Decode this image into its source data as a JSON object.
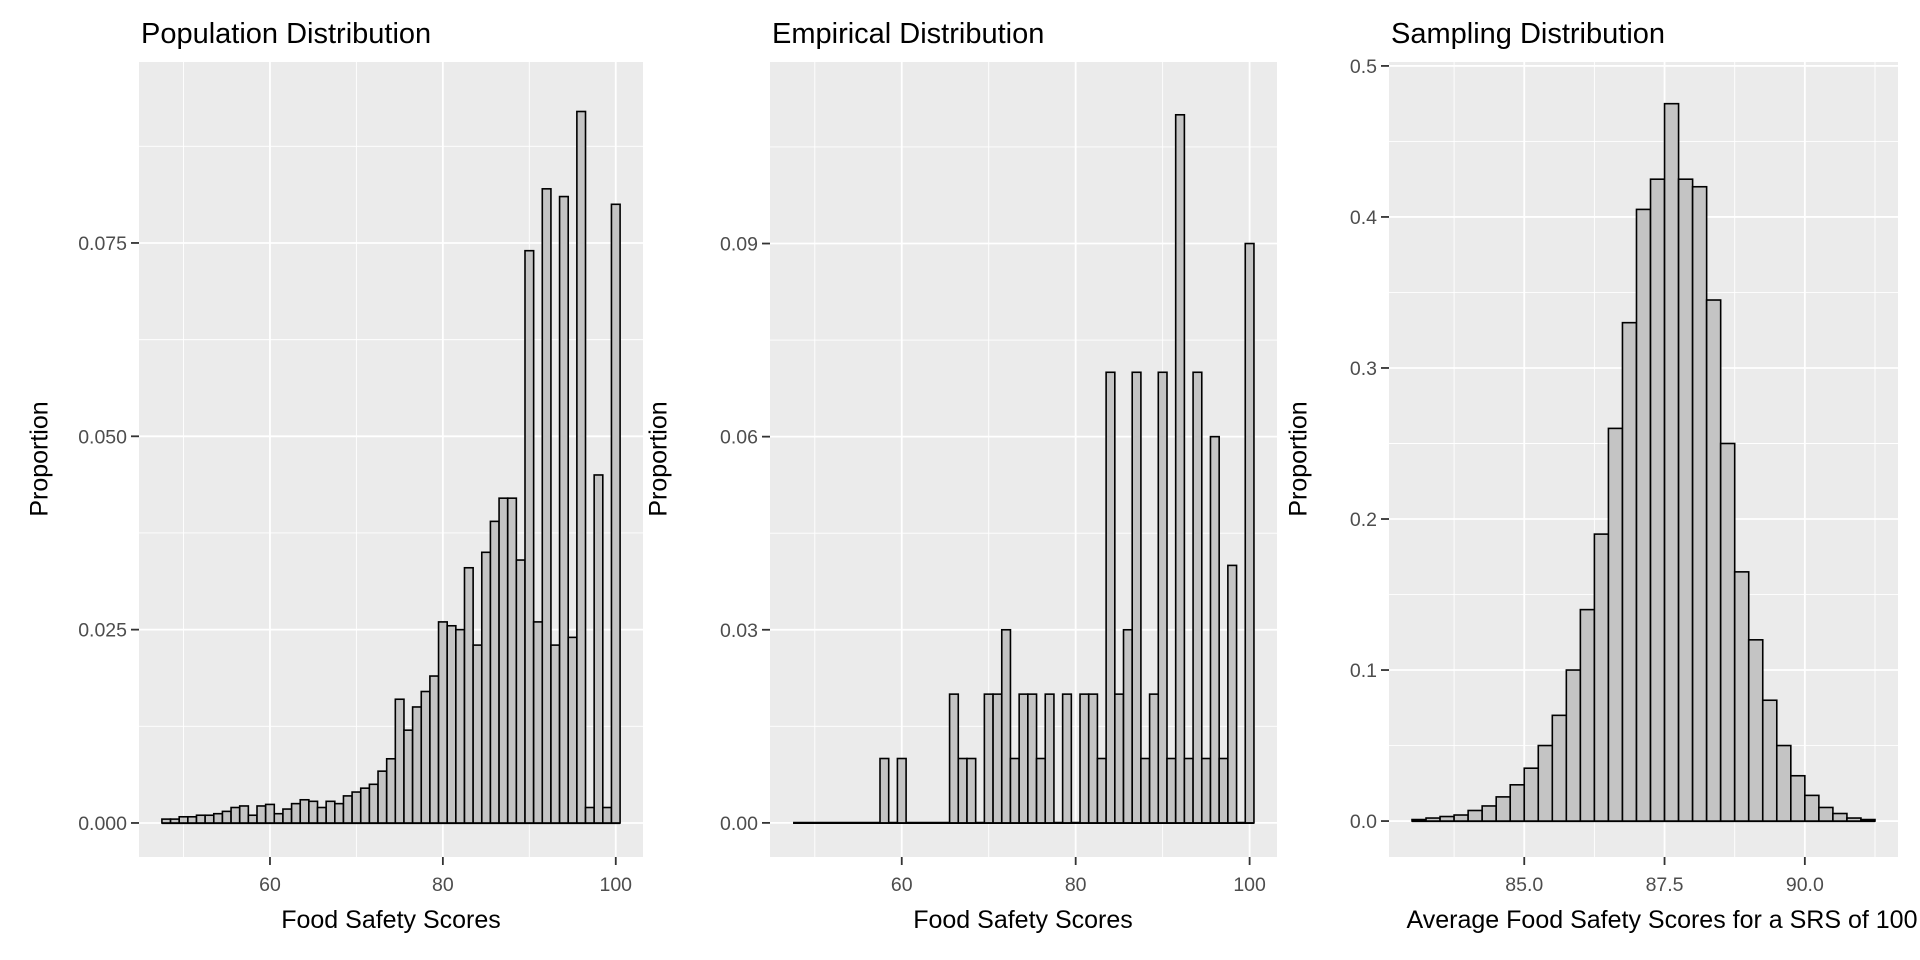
{
  "page": {
    "background": "#ffffff"
  },
  "style": {
    "panel_bg": "#ebebeb",
    "grid_major": "#ffffff",
    "grid_minor": "#ffffff",
    "bar_fill": "#c4c4c4",
    "bar_stroke": "#000000",
    "tick_color": "#333333",
    "tick_label_color": "#4d4d4d",
    "title_color": "#000000"
  },
  "chart_data": [
    {
      "type": "bar",
      "title": "Population Distribution",
      "xlabel": "Food Safety Scores",
      "ylabel": "Proportion",
      "binwidth": 1,
      "bin_centers": [
        48,
        49,
        50,
        51,
        52,
        53,
        54,
        55,
        56,
        57,
        58,
        59,
        60,
        61,
        62,
        63,
        64,
        65,
        66,
        67,
        68,
        69,
        70,
        71,
        72,
        73,
        74,
        75,
        76,
        77,
        78,
        79,
        80,
        81,
        82,
        83,
        84,
        85,
        86,
        87,
        88,
        89,
        90,
        91,
        92,
        93,
        94,
        95,
        96,
        97,
        98,
        99,
        100
      ],
      "values": [
        0.0005,
        0.0005,
        0.0008,
        0.0008,
        0.001,
        0.001,
        0.0012,
        0.0015,
        0.002,
        0.0022,
        0.001,
        0.0022,
        0.0024,
        0.0012,
        0.0018,
        0.0025,
        0.003,
        0.0028,
        0.002,
        0.0028,
        0.0025,
        0.0035,
        0.004,
        0.0045,
        0.005,
        0.0067,
        0.0083,
        0.016,
        0.012,
        0.015,
        0.017,
        0.019,
        0.026,
        0.0255,
        0.025,
        0.033,
        0.023,
        0.035,
        0.039,
        0.042,
        0.042,
        0.034,
        0.074,
        0.026,
        0.082,
        0.023,
        0.081,
        0.024,
        0.092,
        0.002,
        0.045,
        0.002,
        0.08
      ],
      "x_ticks": [
        60,
        80,
        100
      ],
      "x_tick_labels": [
        "60",
        "80",
        "100"
      ],
      "x_minor": [
        50,
        70,
        90
      ],
      "y_ticks": [
        0,
        0.025,
        0.05,
        0.075
      ],
      "y_tick_labels": [
        "0.000",
        "0.025",
        "0.050",
        "0.075"
      ],
      "y_minor": [
        0.0125,
        0.0375,
        0.0625,
        0.0875
      ],
      "xlim": [
        44.85,
        103.15
      ],
      "ylim": [
        -0.0044,
        0.0984
      ],
      "baseline_range": [
        47.5,
        100.5
      ],
      "grid": true,
      "legend": "none"
    },
    {
      "type": "bar",
      "title": "Empirical Distribution",
      "xlabel": "Food Safety Scores",
      "ylabel": "Proportion",
      "binwidth": 1,
      "bin_centers": [
        58,
        60,
        66,
        67,
        68,
        70,
        71,
        72,
        73,
        74,
        75,
        76,
        77,
        79,
        81,
        82,
        83,
        84,
        85,
        86,
        87,
        88,
        89,
        90,
        91,
        92,
        93,
        94,
        95,
        96,
        97,
        98,
        100
      ],
      "values": [
        0.01,
        0.01,
        0.02,
        0.01,
        0.01,
        0.02,
        0.02,
        0.03,
        0.01,
        0.02,
        0.02,
        0.01,
        0.02,
        0.02,
        0.02,
        0.02,
        0.01,
        0.07,
        0.02,
        0.03,
        0.07,
        0.01,
        0.02,
        0.07,
        0.01,
        0.11,
        0.01,
        0.07,
        0.01,
        0.06,
        0.01,
        0.04,
        0.09
      ],
      "x_ticks": [
        60,
        80,
        100
      ],
      "x_tick_labels": [
        "60",
        "80",
        "100"
      ],
      "x_minor": [
        50,
        70,
        90
      ],
      "y_ticks": [
        0,
        0.03,
        0.06,
        0.09
      ],
      "y_tick_labels": [
        "0.00",
        "0.03",
        "0.06",
        "0.09"
      ],
      "y_minor": [
        0.015,
        0.045,
        0.075,
        0.105
      ],
      "xlim": [
        44.85,
        103.15
      ],
      "ylim": [
        -0.0053,
        0.1182
      ],
      "baseline_range": [
        47.5,
        100.5
      ],
      "grid": true,
      "legend": "none"
    },
    {
      "type": "bar",
      "title": "Sampling Distribution",
      "xlabel": "Average Food Safety Scores for a SRS of 100",
      "ylabel": "Proportion",
      "binwidth": 0.25,
      "bin_centers": [
        83.125,
        83.375,
        83.625,
        83.875,
        84.125,
        84.375,
        84.625,
        84.875,
        85.125,
        85.375,
        85.625,
        85.875,
        86.125,
        86.375,
        86.625,
        86.875,
        87.125,
        87.375,
        87.625,
        87.875,
        88.125,
        88.375,
        88.625,
        88.875,
        89.125,
        89.375,
        89.625,
        89.875,
        90.125,
        90.375,
        90.625,
        90.875,
        91.125
      ],
      "values": [
        0.001,
        0.002,
        0.003,
        0.004,
        0.007,
        0.01,
        0.016,
        0.024,
        0.035,
        0.05,
        0.07,
        0.1,
        0.14,
        0.19,
        0.26,
        0.33,
        0.405,
        0.425,
        0.475,
        0.425,
        0.42,
        0.345,
        0.25,
        0.165,
        0.12,
        0.08,
        0.05,
        0.03,
        0.017,
        0.009,
        0.005,
        0.002,
        0.001
      ],
      "x_ticks": [
        85,
        87.5,
        90
      ],
      "x_tick_labels": [
        "85.0",
        "87.5",
        "90.0"
      ],
      "x_minor": [
        83.75,
        86.25,
        88.75,
        91.25
      ],
      "y_ticks": [
        0,
        0.1,
        0.2,
        0.3,
        0.4,
        0.5
      ],
      "y_tick_labels": [
        "0.0",
        "0.1",
        "0.2",
        "0.3",
        "0.4",
        "0.5"
      ],
      "y_minor": [
        0.05,
        0.15,
        0.25,
        0.35,
        0.45
      ],
      "xlim": [
        82.59,
        91.66
      ],
      "ylim": [
        -0.0238,
        0.5026
      ],
      "baseline_range": [
        83,
        91.25
      ],
      "grid": true,
      "legend": "none"
    }
  ]
}
